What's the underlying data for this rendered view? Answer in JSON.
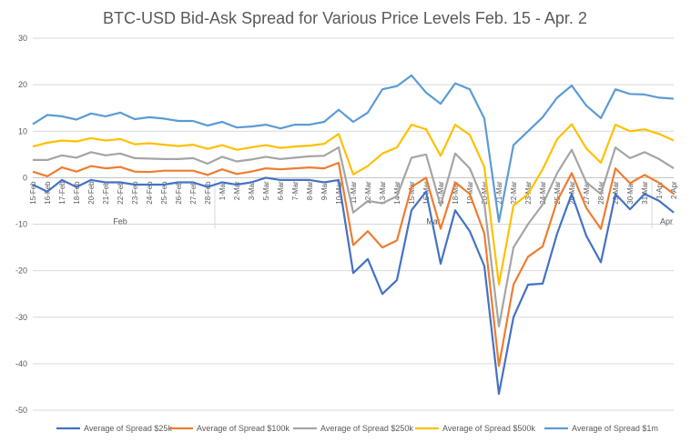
{
  "chart_data": {
    "type": "line",
    "title": "BTC-USD Bid-Ask Spread for Various Price Levels Feb. 15 - Apr. 2",
    "xlabel": "",
    "ylabel": "",
    "ylim": [
      -50,
      30
    ],
    "yticks": [
      30,
      20,
      10,
      0,
      -10,
      -20,
      -30,
      -40,
      -50
    ],
    "categories": [
      "15-Feb",
      "16-Feb",
      "17-Feb",
      "18-Feb",
      "20-Feb",
      "21-Feb",
      "22-Feb",
      "23-Feb",
      "24-Feb",
      "25-Feb",
      "26-Feb",
      "27-Feb",
      "28-Feb",
      "1-Mar",
      "2-Mar",
      "3-Mar",
      "5-Mar",
      "6-Mar",
      "7-Mar",
      "8-Mar",
      "9-Mar",
      "10-Mar",
      "11-Mar",
      "12-Mar",
      "13-Mar",
      "14-Mar",
      "15-Mar",
      "16-Mar",
      "17-Mar",
      "18-Mar",
      "19-Mar",
      "20-Mar",
      "21-Mar",
      "22-Mar",
      "23-Mar",
      "24-Mar",
      "25-Mar",
      "26-Mar",
      "27-Mar",
      "28-Mar",
      "29-Mar",
      "30-Mar",
      "31-Mar",
      "1-Apr",
      "2-Apr"
    ],
    "groups": [
      {
        "label": "Feb",
        "start": 0,
        "end": 12
      },
      {
        "label": "Mar",
        "start": 13,
        "end": 42
      },
      {
        "label": "Apr",
        "start": 43,
        "end": 44
      }
    ],
    "series": [
      {
        "name": "Average of Spread $25k",
        "color": "#4472c4",
        "values": [
          -1.5,
          -3,
          -0.5,
          -2,
          -0.5,
          -1,
          -1,
          -1.5,
          -1.5,
          -1.5,
          -1,
          -1,
          -2,
          -1,
          -1.5,
          -1,
          0,
          -0.5,
          -0.5,
          -0.5,
          -1,
          -0.5,
          -20.5,
          -17.5,
          -25,
          -22,
          -7,
          -3,
          -18.5,
          -7,
          -11.5,
          -19,
          -46.5,
          -30,
          -23,
          -22.8,
          -12,
          -3.5,
          -12.5,
          -18.2,
          -3.5,
          -6.8,
          -3.5,
          -5,
          -7.5
        ]
      },
      {
        "name": "Average of Spread $100k",
        "color": "#ed7d31",
        "values": [
          1.3,
          0.3,
          2.2,
          1.3,
          2.5,
          2,
          2.3,
          1.3,
          1.2,
          1.5,
          1.5,
          1.5,
          0.6,
          1.8,
          0.8,
          1.3,
          2,
          1.8,
          2,
          2.2,
          2,
          3.2,
          -14.5,
          -11.5,
          -15,
          -13.5,
          -2,
          0,
          -11,
          -1,
          -3.5,
          -12,
          -40.5,
          -23,
          -17,
          -14.8,
          -5,
          1,
          -6.5,
          -11,
          2,
          -1.2,
          0.6,
          -1.1,
          -3.5
        ]
      },
      {
        "name": "Average of Spread $250k",
        "color": "#a5a5a5",
        "values": [
          3.8,
          3.8,
          4.8,
          4.3,
          5.5,
          4.8,
          5.2,
          4.2,
          4.1,
          4,
          4,
          4.2,
          3,
          4.5,
          3.5,
          3.9,
          4.5,
          4,
          4.3,
          4.6,
          4.7,
          6.5,
          -7.5,
          -5,
          -5.5,
          -4,
          4.3,
          5,
          -6,
          5.2,
          2,
          -5.5,
          -32,
          -15,
          -10,
          -5.8,
          1,
          6,
          -1,
          -3.5,
          6.5,
          4.2,
          5.5,
          4,
          2
        ]
      },
      {
        "name": "Average of Spread $500k",
        "color": "#ffc000",
        "values": [
          6.7,
          7.5,
          8,
          7.8,
          8.5,
          8,
          8.3,
          7.2,
          7.4,
          7.1,
          6.8,
          7.1,
          6.2,
          7,
          6,
          6.5,
          7,
          6.4,
          6.7,
          6.9,
          7.3,
          9.4,
          0.7,
          2.5,
          5.2,
          6.5,
          11.4,
          10.4,
          4.7,
          11.4,
          9.2,
          2.3,
          -23,
          -6,
          -3.5,
          1.8,
          8.3,
          11.5,
          6.3,
          3.2,
          11.4,
          10,
          10.4,
          9.4,
          8
        ]
      },
      {
        "name": "Average of Spread $1m",
        "color": "#5b9bd5",
        "values": [
          11.5,
          13.5,
          13.2,
          12.5,
          13.8,
          13.2,
          14,
          12.6,
          13,
          12.7,
          12.2,
          12.2,
          11.2,
          12,
          10.8,
          11,
          11.4,
          10.6,
          11.4,
          11.4,
          12,
          14.6,
          12,
          14,
          19,
          19.7,
          22,
          18.3,
          15.9,
          20.3,
          19,
          12.7,
          -9.5,
          7,
          10,
          13,
          17.2,
          19.8,
          15.5,
          12.8,
          19,
          18,
          17.9,
          17.2,
          17
        ]
      }
    ]
  }
}
